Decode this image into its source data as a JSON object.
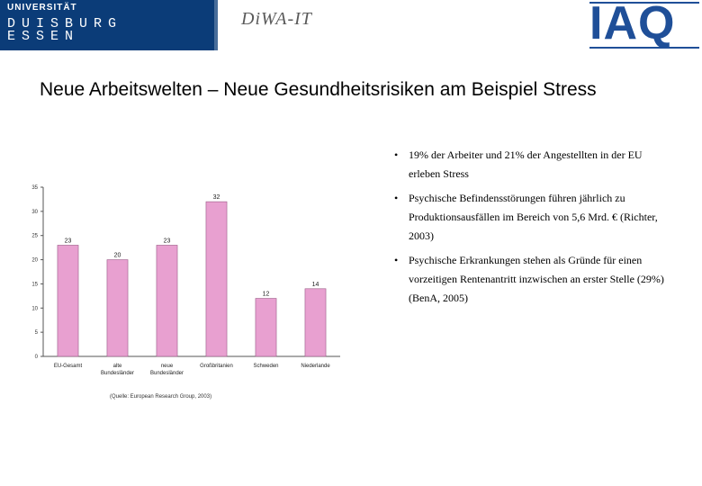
{
  "header": {
    "ude_logo": {
      "small": "UNIVERSITÄT",
      "line1": "DUISBURG",
      "line2": "ESSEN"
    },
    "diva_logo": "DiWA-IT",
    "iaq_logo": "IAQ"
  },
  "slide": {
    "title": "Neue Arbeitswelten – Neue Gesundheitsrisiken am Beispiel Stress",
    "bullets": [
      "19% der Arbeiter und 21% der Angestellten in der EU erleben Stress",
      "Psychische Befindensstörungen führen jährlich zu Produktionsausfällen im Bereich von 5,6 Mrd. € (Richter, 2003)",
      "Psychische Erkrankungen stehen als Gründe für einen vorzeitigen Rentenantritt inzwischen an erster Stelle (29%) (BenA, 2005)"
    ],
    "source": "(Quelle: European Research Group, 2003)"
  },
  "chart_data": {
    "type": "bar",
    "categories": [
      "EU-Gesamt",
      "alte Bundesländer",
      "neue Bundesländer",
      "Großbritanien",
      "Schweden",
      "Niederlande"
    ],
    "category_lines": [
      [
        "EU-Gesamt"
      ],
      [
        "alte",
        "Bundesländer"
      ],
      [
        "neue",
        "Bundesländer"
      ],
      [
        "Großbritanien"
      ],
      [
        "Schweden"
      ],
      [
        "Niederlande"
      ]
    ],
    "values": [
      23,
      20,
      23,
      32,
      12,
      14
    ],
    "title": "",
    "xlabel": "",
    "ylabel": "",
    "ylim": [
      0,
      35
    ],
    "yticks": [
      0,
      5,
      10,
      15,
      20,
      25,
      30,
      35
    ],
    "grid": false,
    "colors": {
      "bar": "#e8a0d0",
      "bar_edge": "#9a5a86",
      "axis": "#555555"
    }
  }
}
